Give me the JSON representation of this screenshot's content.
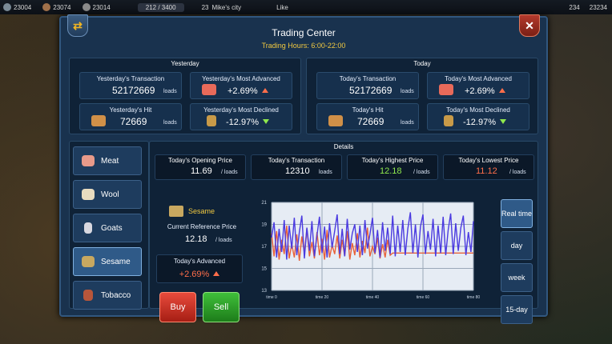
{
  "topbar": {
    "resources": [
      "23004",
      "23074",
      "23014"
    ],
    "population": "212 / 3400",
    "level": "23",
    "city": "Mike's city",
    "like": "Like",
    "gems": "234",
    "gold": "23234"
  },
  "window": {
    "title": "Trading Center",
    "hours": "Trading Hours: 6:00-22:00"
  },
  "yesterday": {
    "title": "Yesterday",
    "transaction_label": "Yesterday's Transaction",
    "transaction_value": "52172669",
    "transaction_unit": "loads",
    "advanced_label": "Yesterday's Most Advanced",
    "advanced_value": "+2.69%",
    "hit_label": "Yesterday's Hit",
    "hit_value": "72669",
    "hit_unit": "loads",
    "declined_label": "Yesterday's Most Declined",
    "declined_value": "-12.97%"
  },
  "today": {
    "title": "Today",
    "transaction_label": "Today's Transaction",
    "transaction_value": "52172669",
    "transaction_unit": "loads",
    "advanced_label": "Today's Most Advanced",
    "advanced_value": "+2.69%",
    "hit_label": "Today's Hit",
    "hit_value": "72669",
    "hit_unit": "loads",
    "declined_label": "Today's Most Declined",
    "declined_value": "-12.97%"
  },
  "goods": [
    {
      "label": "Meat",
      "color": "#e89a8a"
    },
    {
      "label": "Wool",
      "color": "#e8dcc0"
    },
    {
      "label": "Goats",
      "color": "#d8d8e0"
    },
    {
      "label": "Sesame",
      "color": "#c8a860"
    },
    {
      "label": "Tobacco",
      "color": "#b8563a"
    }
  ],
  "details": {
    "title": "Details",
    "opening_label": "Today's Opening Price",
    "opening_value": "11.69",
    "opening_unit": "/ loads",
    "transaction_label": "Today's Transaction",
    "transaction_value": "12310",
    "transaction_unit": "loads",
    "highest_label": "Today's Highest Price",
    "highest_value": "12.18",
    "highest_unit": "/ loads",
    "lowest_label": "Today's Lowest Price",
    "lowest_value": "11.12",
    "lowest_unit": "/ loads",
    "selected_good": "Sesame",
    "ref_label": "Current Reference Price",
    "ref_value": "12.18",
    "ref_unit": "/ loads",
    "advanced_label": "Today's Advanced",
    "advanced_value": "+2.69%",
    "buy": "Buy",
    "sell": "Sell"
  },
  "ranges": [
    "Real time",
    "day",
    "week",
    "15-day"
  ],
  "colors": {
    "positive": "#ff6e4a",
    "negative": "#8fe84d",
    "highest": "#8fe84d",
    "lowest": "#ff6e4a"
  },
  "chart_data": {
    "type": "line",
    "yticks": [
      "21",
      "19",
      "17",
      "15",
      "13"
    ],
    "ylim": [
      13,
      21
    ],
    "xticks": [
      "time 0",
      "time 20",
      "time 40",
      "time 60",
      "time 80"
    ],
    "xlim": [
      0,
      80
    ],
    "series": [
      {
        "color": "#e8623a",
        "values": [
          18.2,
          16.1,
          18.4,
          15.8,
          17.6,
          16.3,
          18.9,
          15.9,
          17.2,
          16.0,
          18.1,
          15.7,
          17.9,
          16.4,
          18.6,
          16.1,
          17.4,
          15.9,
          18.3,
          16.2,
          17.7,
          15.8,
          18.5,
          16.0,
          17.1,
          16.3,
          18.0,
          15.9,
          17.6,
          16.1,
          18.4,
          15.8,
          17.3,
          16.2,
          18.2,
          16.0,
          17.5,
          16.4,
          18.7,
          16.1,
          17.0,
          16.3,
          17.8,
          15.9,
          17.2,
          16.0,
          17.6,
          16.2,
          16.4,
          16.4,
          16.4,
          16.4,
          16.4,
          16.4,
          16.4,
          16.4,
          16.4,
          16.4,
          16.4,
          16.4,
          16.4,
          16.4,
          16.4,
          16.4,
          16.4,
          16.4,
          16.4,
          16.4,
          16.4,
          16.4,
          16.4,
          16.4,
          16.4,
          16.4,
          16.4,
          16.4,
          16.4,
          16.4,
          16.4,
          16.4,
          16.4
        ]
      },
      {
        "color": "#4a3ae0",
        "values": [
          17.8,
          19.2,
          16.0,
          18.6,
          16.5,
          19.4,
          15.8,
          18.9,
          16.8,
          19.6,
          16.2,
          18.3,
          19.8,
          15.9,
          18.7,
          16.6,
          19.3,
          16.1,
          18.0,
          19.7,
          16.4,
          18.8,
          16.0,
          19.1,
          16.9,
          18.4,
          19.9,
          16.3,
          18.6,
          16.1,
          19.5,
          16.7,
          18.2,
          19.0,
          16.5,
          18.9,
          16.2,
          19.4,
          16.8,
          18.1,
          19.6,
          16.4,
          18.5,
          16.0,
          19.2,
          16.6,
          18.7,
          16.3,
          19.8,
          16.1,
          18.9,
          16.5,
          19.4,
          16.2,
          18.6,
          20.1,
          16.4,
          19.0,
          16.0,
          18.8,
          19.9,
          16.3,
          18.4,
          16.7,
          19.5,
          16.1,
          18.9,
          16.4,
          19.7,
          16.2,
          18.5,
          20.0,
          16.3,
          19.1,
          16.6,
          18.7,
          19.8,
          16.2,
          18.3,
          16.5,
          19.3
        ]
      }
    ]
  }
}
